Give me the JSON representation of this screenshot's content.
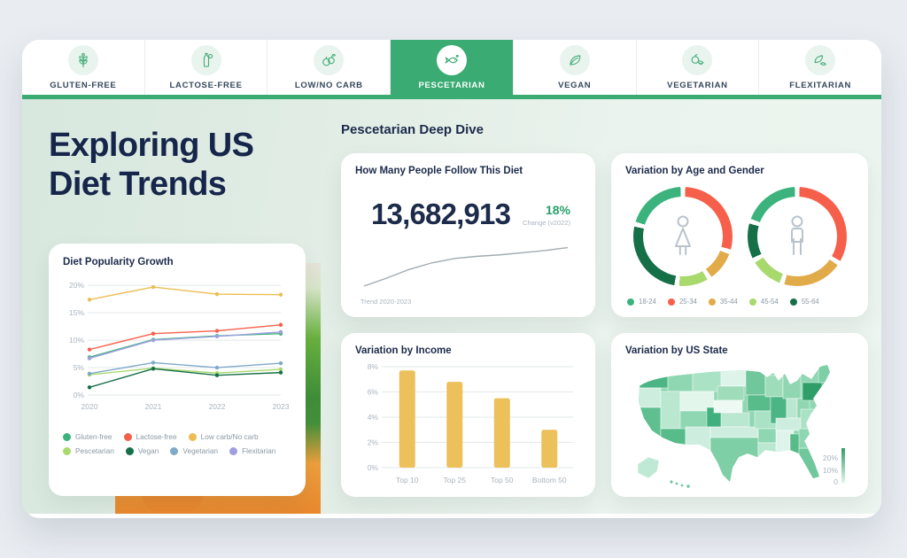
{
  "colors": {
    "accent_green": "#3aab72",
    "navy": "#16254a",
    "muted_gray": "#a9b4bf",
    "legend_gray": "#8a99a6",
    "page_bg": "#e9edf2"
  },
  "tabs": [
    {
      "label": "GLUTEN-FREE",
      "icon": "wheat-icon",
      "active": false
    },
    {
      "label": "LACTOSE-FREE",
      "icon": "milk-bottle-icon",
      "active": false
    },
    {
      "label": "LOW/NO CARB",
      "icon": "vegetables-icon",
      "active": false
    },
    {
      "label": "PESCETARIAN",
      "icon": "fish-icon",
      "active": true
    },
    {
      "label": "VEGAN",
      "icon": "leaves-icon",
      "active": false
    },
    {
      "label": "VEGETARIAN",
      "icon": "tomato-icon",
      "active": false
    },
    {
      "label": "FLEXITARIAN",
      "icon": "leaf-fish-icon",
      "active": false
    }
  ],
  "hero": {
    "title_lines": [
      "Exploring US",
      "Diet Trends"
    ]
  },
  "deep_dive_heading": "Pescetarian Deep Dive",
  "cards": {
    "followers": {
      "title": "How Many People Follow This Diet",
      "value": "13,682,913",
      "change_value": "18%",
      "change_label": "Change (v2022)",
      "trend_caption": "Trend 2020-2023"
    },
    "age_gender": {
      "title": "Variation by Age and Gender"
    },
    "income": {
      "title": "Variation by Income"
    },
    "state": {
      "title": "Variation by US State",
      "legend_ticks": [
        "20%",
        "10%",
        "0"
      ]
    }
  },
  "chart_data": [
    {
      "id": "diet_popularity_growth",
      "type": "line",
      "title": "Diet Popularity Growth",
      "x": [
        "2020",
        "2021",
        "2022",
        "2023"
      ],
      "y_ticks": [
        20,
        15,
        10,
        5,
        0
      ],
      "ylim": [
        0,
        21
      ],
      "grid": true,
      "legend_position": "bottom",
      "series": [
        {
          "name": "Gluten-free",
          "color": "#3cb37d",
          "values": [
            6.9,
            10.1,
            10.8,
            11.2
          ]
        },
        {
          "name": "Lactose-free",
          "color": "#f6604a",
          "values": [
            8.3,
            11.2,
            11.7,
            12.8
          ]
        },
        {
          "name": "Low carb/No carb",
          "color": "#ecbd52",
          "values": [
            17.4,
            19.7,
            18.4,
            18.3
          ]
        },
        {
          "name": "Pescetarian",
          "color": "#a8d96d",
          "values": [
            3.7,
            4.9,
            4.0,
            4.7
          ]
        },
        {
          "name": "Vegan",
          "color": "#156f47",
          "values": [
            1.4,
            4.8,
            3.6,
            4.1
          ]
        },
        {
          "name": "Vegetarian",
          "color": "#7fa9c9",
          "values": [
            3.9,
            5.9,
            5.0,
            5.8
          ]
        },
        {
          "name": "Flexitarian",
          "color": "#9f9fe0",
          "values": [
            6.7,
            10.0,
            10.7,
            11.5
          ]
        }
      ]
    },
    {
      "id": "followers_trend",
      "type": "line",
      "title": "Trend 2020-2023",
      "x_range": [
        "2020",
        "2023"
      ],
      "values": [
        0,
        1.1,
        2.3,
        3.2,
        3.8,
        4.1,
        4.3,
        4.6,
        4.9,
        5.3
      ],
      "color": "#9fabb2",
      "grid": false
    },
    {
      "id": "age_gender_donuts",
      "type": "pie",
      "legend": [
        "18-24",
        "25-34",
        "35-44",
        "45-54",
        "55-64"
      ],
      "colors": {
        "18-24": "#3cb37d",
        "25-34": "#f6604a",
        "35-44": "#e2ab49",
        "45-54": "#a8d96d",
        "55-64": "#156f47"
      },
      "donuts": [
        {
          "name": "female",
          "icon": "female-icon",
          "segments": [
            [
              "25-34",
              30
            ],
            [
              "35-44",
              11
            ],
            [
              "45-54",
              11
            ],
            [
              "55-64",
              27
            ],
            [
              "18-24",
              21
            ]
          ]
        },
        {
          "name": "male",
          "icon": "male-icon",
          "segments": [
            [
              "25-34",
              34
            ],
            [
              "35-44",
              21
            ],
            [
              "45-54",
              12
            ],
            [
              "55-64",
              13
            ],
            [
              "18-24",
              20
            ]
          ]
        }
      ]
    },
    {
      "id": "income",
      "type": "bar",
      "categories": [
        "Top 10",
        "Top 25",
        "Top 50",
        "Bottom 50"
      ],
      "values": [
        7.7,
        6.8,
        5.5,
        3.0
      ],
      "y_ticks": [
        8,
        6,
        4,
        2,
        0
      ],
      "ylim": [
        0,
        8
      ],
      "bar_color": "#ecc05a",
      "grid": true
    },
    {
      "id": "us_state",
      "type": "heatmap",
      "title": "Variation by US State",
      "scale": {
        "min_label": "0",
        "mid_label": "10%",
        "max_label": "20%",
        "min_color": "#e7f7ee",
        "max_color": "#2f9e68"
      }
    }
  ]
}
